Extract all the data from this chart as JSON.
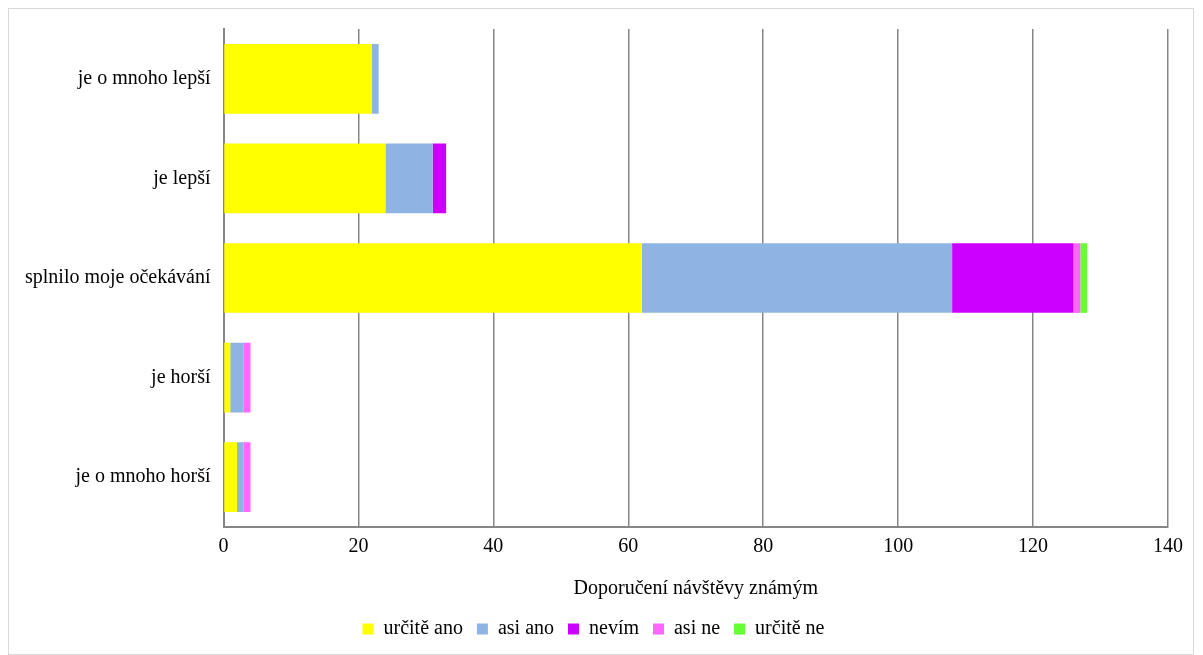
{
  "chart_data": {
    "type": "bar",
    "orientation": "horizontal",
    "stacked": true,
    "xlabel": "Doporučení návštěvy známým",
    "categories": [
      "je o mnoho lepší",
      "je lepší",
      "splnilo moje očekávání",
      "je horší",
      "je o mnoho horší"
    ],
    "series": [
      {
        "name": "určitě ano",
        "color": "#ffff00",
        "values": [
          22,
          24,
          62,
          1,
          2
        ]
      },
      {
        "name": "asi ano",
        "color": "#8eb4e3",
        "values": [
          1,
          7,
          46,
          2,
          1
        ]
      },
      {
        "name": "nevím",
        "color": "#cc00ff",
        "values": [
          null,
          2,
          18,
          null,
          null
        ]
      },
      {
        "name": "asi ne",
        "color": "#ff66ff",
        "values": [
          null,
          null,
          1,
          1,
          1
        ]
      },
      {
        "name": "určitě ne",
        "color": "#66ff33",
        "values": [
          null,
          null,
          1,
          null,
          null
        ]
      }
    ],
    "xlim": [
      0,
      140
    ],
    "xticks": [
      0,
      20,
      40,
      60,
      80,
      100,
      120,
      140
    ],
    "grid": "x",
    "legend": "bottom"
  }
}
